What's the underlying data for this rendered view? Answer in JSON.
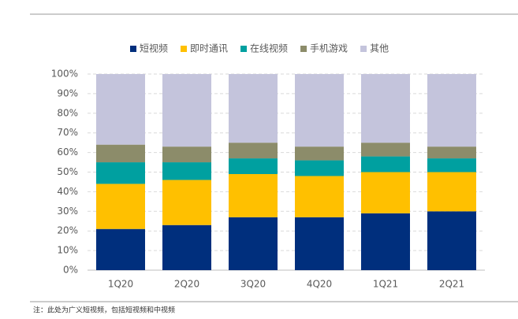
{
  "chart_data": {
    "type": "stacked-bar",
    "categories": [
      "1Q20",
      "2Q20",
      "3Q20",
      "4Q20",
      "1Q21",
      "2Q21"
    ],
    "series": [
      {
        "name": "短视频",
        "color": "#002f7d",
        "values": [
          21,
          23,
          27,
          27,
          29,
          30
        ]
      },
      {
        "name": "即时通讯",
        "color": "#ffc000",
        "values": [
          23,
          23,
          22,
          21,
          21,
          20
        ]
      },
      {
        "name": "在线视频",
        "color": "#00a0a0",
        "values": [
          11,
          9,
          8,
          8,
          8,
          7
        ]
      },
      {
        "name": "手机游戏",
        "color": "#8c8c6a",
        "values": [
          9,
          8,
          8,
          7,
          7,
          6
        ]
      },
      {
        "name": "其他",
        "color": "#c4c4dc",
        "values": [
          36,
          37,
          35,
          37,
          35,
          37
        ]
      }
    ],
    "ylim": [
      0,
      100
    ],
    "yticks": [
      {
        "value": 0,
        "label": "0%"
      },
      {
        "value": 10,
        "label": "10%"
      },
      {
        "value": 20,
        "label": "20%"
      },
      {
        "value": 30,
        "label": "30%"
      },
      {
        "value": 40,
        "label": "40%"
      },
      {
        "value": 50,
        "label": "50%"
      },
      {
        "value": 60,
        "label": "60%"
      },
      {
        "value": 70,
        "label": "70%"
      },
      {
        "value": 80,
        "label": "80%"
      },
      {
        "value": 90,
        "label": "90%"
      },
      {
        "value": 100,
        "label": "100%"
      }
    ],
    "grid": true,
    "note": "注：此处为广义短视频，包括短视频和中视频"
  }
}
